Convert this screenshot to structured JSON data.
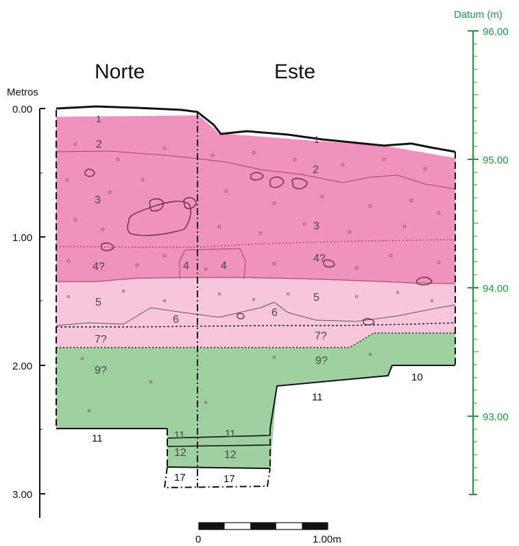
{
  "headings": {
    "north": "Norte",
    "east": "Este"
  },
  "left_axis": {
    "title": "Metros",
    "ticks": [
      "0.00",
      "1.00",
      "2.00",
      "3.00"
    ]
  },
  "right_axis": {
    "title": "Datum (m)",
    "ticks": [
      "96.00",
      "95.00",
      "94.00",
      "93.00"
    ]
  },
  "scale_bar": {
    "start": "0",
    "end": "1.00m"
  },
  "colors": {
    "stratum_pink_dark": "#ef93bd",
    "stratum_pink_light": "#f7c6dc",
    "stratum_green": "#9fd09f",
    "datum_green": "#1f9a3b"
  },
  "layers": {
    "north": {
      "l1": "1",
      "l2": "2",
      "l3": "3",
      "l4": "4?",
      "l4b": "4",
      "l5": "5",
      "l6": "6",
      "l7": "7?",
      "l9": "9?",
      "l11": "11",
      "l11b": "11",
      "l12": "12",
      "l17": "17"
    },
    "east": {
      "l1": "1",
      "l2": "2",
      "l3": "3",
      "l4": "4",
      "l4q": "4?",
      "l5": "5",
      "l6": "6",
      "l7": "7?",
      "l9": "9?",
      "l10": "10",
      "l11": "11",
      "l11b": "11",
      "l12": "12",
      "l17": "17"
    }
  }
}
